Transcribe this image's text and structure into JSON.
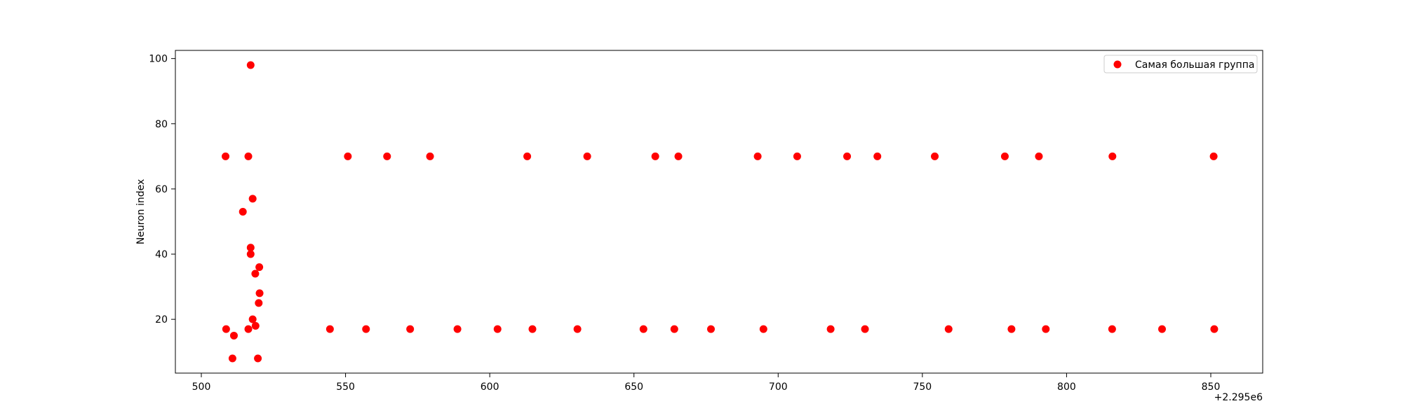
{
  "chart_data": {
    "type": "scatter",
    "title": "",
    "xlabel": "",
    "ylabel": "Neuron index",
    "x_offset_label": "+2.295e6",
    "xlim": [
      491,
      868
    ],
    "ylim": [
      3.5,
      102.5
    ],
    "xticks": [
      500,
      550,
      600,
      650,
      700,
      750,
      800,
      850
    ],
    "xtick_labels": [
      "500",
      "550",
      "600",
      "650",
      "700",
      "750",
      "800",
      "850"
    ],
    "yticks": [
      20,
      40,
      60,
      80,
      100
    ],
    "ytick_labels": [
      "20",
      "40",
      "60",
      "80",
      "100"
    ],
    "grid": false,
    "legend_position": "top-right",
    "series": [
      {
        "name": "Самая большая группа",
        "color": "#ff0000",
        "points": [
          {
            "x": 508.4,
            "y": 70
          },
          {
            "x": 516.3,
            "y": 70
          },
          {
            "x": 550.8,
            "y": 70
          },
          {
            "x": 564.4,
            "y": 70
          },
          {
            "x": 579.3,
            "y": 70
          },
          {
            "x": 613.0,
            "y": 70
          },
          {
            "x": 633.8,
            "y": 70
          },
          {
            "x": 657.4,
            "y": 70
          },
          {
            "x": 665.4,
            "y": 70
          },
          {
            "x": 692.9,
            "y": 70
          },
          {
            "x": 706.6,
            "y": 70
          },
          {
            "x": 723.9,
            "y": 70
          },
          {
            "x": 734.4,
            "y": 70
          },
          {
            "x": 754.3,
            "y": 70
          },
          {
            "x": 778.6,
            "y": 70
          },
          {
            "x": 790.4,
            "y": 70
          },
          {
            "x": 815.9,
            "y": 70
          },
          {
            "x": 851.0,
            "y": 70
          },
          {
            "x": 517.1,
            "y": 98
          },
          {
            "x": 517.8,
            "y": 57
          },
          {
            "x": 514.4,
            "y": 53
          },
          {
            "x": 517.1,
            "y": 42
          },
          {
            "x": 517.1,
            "y": 40
          },
          {
            "x": 520.1,
            "y": 36
          },
          {
            "x": 518.7,
            "y": 34
          },
          {
            "x": 520.2,
            "y": 28
          },
          {
            "x": 519.9,
            "y": 25
          },
          {
            "x": 517.8,
            "y": 20
          },
          {
            "x": 518.8,
            "y": 18
          },
          {
            "x": 508.6,
            "y": 17
          },
          {
            "x": 516.3,
            "y": 17
          },
          {
            "x": 511.3,
            "y": 15
          },
          {
            "x": 510.8,
            "y": 8
          },
          {
            "x": 519.6,
            "y": 8
          },
          {
            "x": 544.6,
            "y": 17
          },
          {
            "x": 557.1,
            "y": 17
          },
          {
            "x": 572.4,
            "y": 17
          },
          {
            "x": 588.8,
            "y": 17
          },
          {
            "x": 602.7,
            "y": 17
          },
          {
            "x": 614.8,
            "y": 17
          },
          {
            "x": 630.4,
            "y": 17
          },
          {
            "x": 653.3,
            "y": 17
          },
          {
            "x": 664.0,
            "y": 17
          },
          {
            "x": 676.7,
            "y": 17
          },
          {
            "x": 694.9,
            "y": 17
          },
          {
            "x": 718.2,
            "y": 17
          },
          {
            "x": 730.1,
            "y": 17
          },
          {
            "x": 759.1,
            "y": 17
          },
          {
            "x": 780.9,
            "y": 17
          },
          {
            "x": 792.8,
            "y": 17
          },
          {
            "x": 815.8,
            "y": 17
          },
          {
            "x": 833.1,
            "y": 17
          },
          {
            "x": 851.2,
            "y": 17
          }
        ]
      }
    ]
  }
}
